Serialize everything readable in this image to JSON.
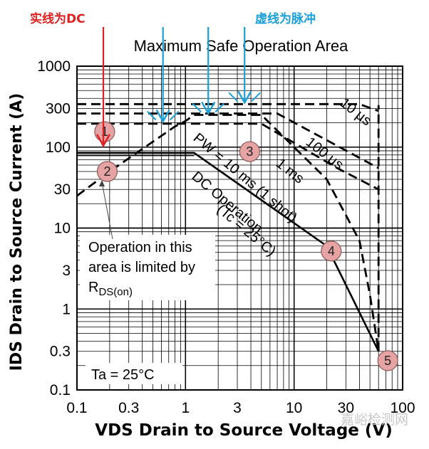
{
  "header": {
    "red_note": "实线为DC",
    "blue_note": "虚线为脉冲"
  },
  "chart_data": {
    "type": "line",
    "title": "Maximum Safe Operation Area",
    "xlabel": "VDS Drain to Source Voltage (V)",
    "ylabel": "IDS Drain to Source Current (A)",
    "x_scale": "log",
    "y_scale": "log",
    "xlim": [
      0.1,
      100
    ],
    "ylim": [
      0.1,
      1000
    ],
    "x_ticks": [
      "0.1",
      "0.3",
      "1",
      "3",
      "10",
      "30",
      "100"
    ],
    "x_tick_values": [
      0.1,
      0.3,
      1,
      3,
      10,
      30,
      100
    ],
    "y_ticks": [
      "1000",
      "300",
      "100",
      "30",
      "10",
      "3",
      "1",
      "0.3",
      "0.1"
    ],
    "y_tick_values": [
      1000,
      300,
      100,
      30,
      10,
      3,
      1,
      0.3,
      0.1
    ],
    "grid": true,
    "series": [
      {
        "name": "Operation in this area is limited by R",
        "style": "dashed",
        "points": [
          [
            0.1,
            25
          ],
          [
            0.2,
            50
          ],
          [
            0.8,
            180
          ],
          [
            1.0,
            210
          ],
          [
            1.2,
            250
          ]
        ]
      },
      {
        "name": "DC Operation (Tc = 25°C)",
        "style": "solid",
        "points": [
          [
            0.1,
            85
          ],
          [
            1.2,
            85
          ],
          [
            20,
            6
          ],
          [
            60,
            0.3
          ]
        ]
      },
      {
        "name": "PW = 10 ms (1 shot)",
        "style": "dashed",
        "points": [
          [
            1.2,
            250
          ],
          [
            5,
            250
          ],
          [
            20,
            40
          ],
          [
            40,
            7
          ],
          [
            50,
            1.5
          ],
          [
            60,
            0.3
          ]
        ]
      },
      {
        "name": "1 ms",
        "style": "dashed",
        "points": [
          [
            0.1,
            195
          ],
          [
            5,
            195
          ],
          [
            25,
            55
          ],
          [
            60,
            30
          ]
        ]
      },
      {
        "name": "100 µs",
        "style": "dashed",
        "points": [
          [
            0.1,
            260
          ],
          [
            7,
            260
          ],
          [
            60,
            55
          ]
        ]
      },
      {
        "name": "10 µs",
        "style": "dashed",
        "points": [
          [
            0.1,
            340
          ],
          [
            40,
            340
          ],
          [
            60,
            280
          ]
        ]
      },
      {
        "name": "Vmax",
        "style": "dashed",
        "points": [
          [
            60,
            0.3
          ],
          [
            60,
            330
          ]
        ]
      }
    ],
    "annotations": {
      "pw_label": "PW = 10 ms (1 shot)",
      "ms1_label": "1 ms",
      "us100_label": "100 µs",
      "us10_label": "10 µs",
      "dc_label_1": "DC Operation",
      "dc_label_2": "(Tc = 25°C)",
      "rds_line_1": "Operation in this",
      "rds_line_2": "area is limited by",
      "rds_line_3_main": "R",
      "rds_line_3_sub": "DS(on)",
      "ta_label": "Ta = 25°C"
    },
    "markers": [
      {
        "label": "1",
        "x": 0.18,
        "y": 155
      },
      {
        "label": "2",
        "x": 0.19,
        "y": 50
      },
      {
        "label": "3",
        "x": 3.9,
        "y": 88
      },
      {
        "label": "4",
        "x": 22,
        "y": 5.2
      },
      {
        "label": "5",
        "x": 73,
        "y": 0.23
      }
    ],
    "red_arrows": [
      {
        "x": 0.175,
        "y_end": 100
      }
    ],
    "blue_arrows": [
      {
        "x": 0.62,
        "y_end": 200
      },
      {
        "x": 1.62,
        "y_end": 250
      },
      {
        "x": 3.5,
        "y_end": 340
      }
    ]
  },
  "watermark": "嘉峪检测网"
}
